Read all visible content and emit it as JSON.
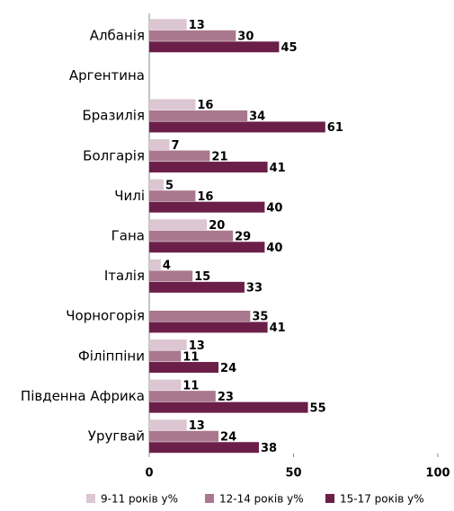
{
  "chart_data": {
    "type": "bar",
    "orientation": "horizontal",
    "categories": [
      "Албанія",
      "Аргентина",
      "Бразилія",
      "Болгарія",
      "Чилі",
      "Гана",
      "Італія",
      "Чорногорія",
      "Філіппіни",
      "Південна Африка",
      "Уругвай"
    ],
    "series": [
      {
        "name": "9-11 років у%",
        "color": "#dcc6d2",
        "values": [
          13,
          null,
          16,
          7,
          5,
          20,
          4,
          null,
          13,
          11,
          13
        ]
      },
      {
        "name": "12-14 років у%",
        "color": "#a9788f",
        "values": [
          30,
          null,
          34,
          21,
          16,
          29,
          15,
          35,
          11,
          23,
          24
        ]
      },
      {
        "name": "15-17 років у%",
        "color": "#6b1f48",
        "values": [
          45,
          null,
          61,
          41,
          40,
          40,
          33,
          41,
          24,
          55,
          38
        ]
      }
    ],
    "xlim": [
      0,
      100
    ],
    "xticks": [
      0,
      50,
      100
    ],
    "legend": "bottom"
  }
}
